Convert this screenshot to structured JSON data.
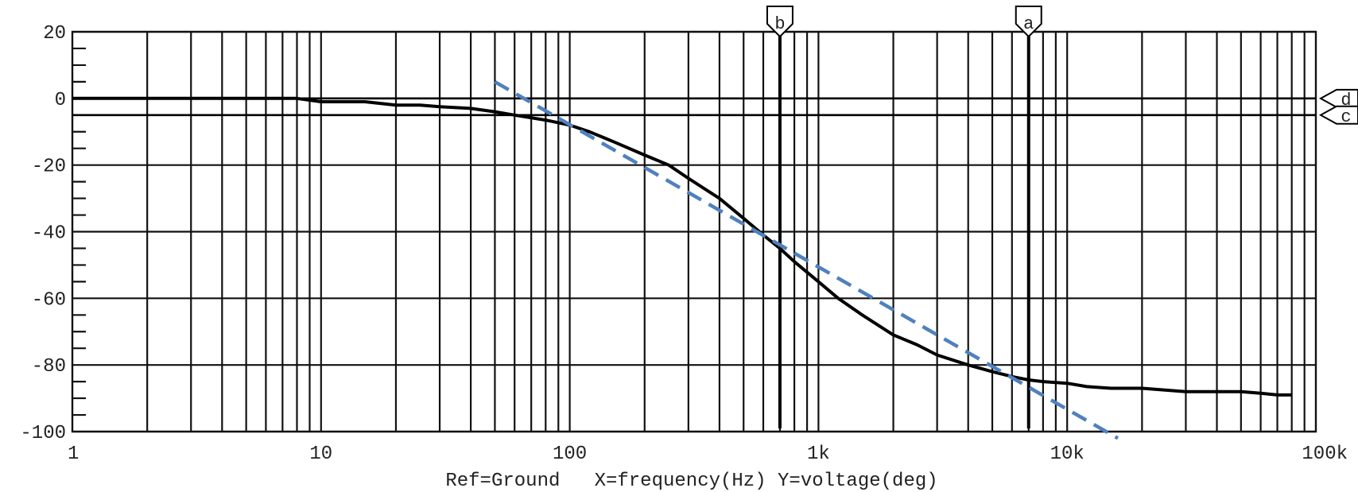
{
  "chart_data": {
    "type": "line",
    "title": "",
    "x_scale": "log",
    "xlim": [
      1,
      100000
    ],
    "ylim": [
      -100,
      20
    ],
    "grid": true,
    "x_ticks": [
      1,
      10,
      100,
      1000,
      10000,
      100000
    ],
    "x_tick_labels": [
      "1",
      "10",
      "100",
      "1k",
      "10k",
      "100k"
    ],
    "y_ticks": [
      20,
      0,
      -20,
      -40,
      -60,
      -80,
      -100
    ],
    "y_tick_labels": [
      "20",
      "0",
      "-20",
      "-40",
      "-60",
      "-80",
      "-100"
    ],
    "caption": "Ref=Ground   X=frequency(Hz) Y=voltage(deg)",
    "series": [
      {
        "style": "solid",
        "color": "#000000",
        "x": [
          1,
          8,
          10,
          15,
          20,
          25,
          30,
          40,
          50,
          60,
          80,
          100,
          120,
          150,
          200,
          250,
          300,
          400,
          500,
          600,
          700,
          800,
          1000,
          1200,
          1500,
          2000,
          2500,
          3000,
          4000,
          5000,
          6000,
          7000,
          8000,
          10000,
          12000,
          15000,
          20000,
          30000,
          50000,
          60000,
          70000,
          80000
        ],
        "y": [
          0,
          0,
          -1,
          -1,
          -2,
          -2,
          -2.5,
          -3,
          -4,
          -5,
          -6.5,
          -8,
          -10,
          -13,
          -17,
          -20,
          -24,
          -30,
          -36,
          -41,
          -45,
          -49,
          -55,
          -60,
          -65,
          -71,
          -74,
          -77,
          -80,
          -82,
          -83.5,
          -84.5,
          -85,
          -85.5,
          -86.5,
          -87,
          -87,
          -88,
          -88,
          -88.5,
          -89,
          -89
        ]
      },
      {
        "style": "dashed",
        "color": "#4f81bd",
        "x": [
          50,
          16000
        ],
        "y": [
          5,
          -102
        ]
      }
    ],
    "horizontal_markers": [
      {
        "label": "d",
        "y": 0
      },
      {
        "label": "c",
        "y": -5
      }
    ],
    "vertical_markers": [
      {
        "label": "b",
        "x": 700
      },
      {
        "label": "a",
        "x": 7000
      }
    ]
  },
  "colors": {
    "grid": "#111111",
    "trace": "#000000",
    "asymptote": "#4f81bd"
  }
}
